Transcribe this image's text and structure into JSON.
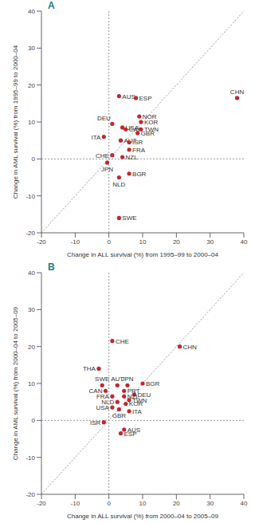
{
  "chart_data": [
    {
      "type": "scatter",
      "title": "A",
      "x_label": "Change in ALL survival (%) from 1995–99 to 2000–04",
      "y_label": "Change in AML survival (%) from 1995–99 to 2000–04",
      "xlim": [
        -20,
        40
      ],
      "ylim": [
        -20,
        40
      ],
      "xticks": [
        -20,
        -10,
        0,
        10,
        20,
        30,
        40
      ],
      "yticks": [
        -20,
        -10,
        0,
        10,
        20,
        30,
        40
      ],
      "color": "#c0282f",
      "grid": false,
      "labels": [
        "AUS",
        "ESP",
        "CHN",
        "NOR",
        "KOR",
        "DEU",
        "USA",
        "CAN",
        "TWN",
        "GBR",
        "ITA",
        "AUT",
        "ISR",
        "FRA",
        "CHE",
        "NZL",
        "JPN",
        "BGR",
        "NLD",
        "SWE"
      ],
      "x": [
        3,
        8,
        38,
        9,
        9.5,
        1,
        4,
        5,
        9.5,
        8.5,
        -1.5,
        3.5,
        6,
        6,
        1,
        4,
        -0.5,
        6,
        3,
        3
      ],
      "values": [
        17,
        16.5,
        16.5,
        11.5,
        10,
        9.5,
        8.5,
        8,
        8,
        7,
        6,
        5,
        4.5,
        2.5,
        1,
        0.5,
        -1,
        -4,
        -5,
        -16
      ],
      "reference_lines": [
        {
          "x": 0
        },
        {
          "y": 0
        },
        {
          "segment": [
            [
              -20,
              -20
            ],
            [
              40,
              40
            ]
          ]
        }
      ]
    },
    {
      "type": "scatter",
      "title": "B",
      "x_label": "Change in ALL survival (%) from 2000–04 to 2005–09",
      "y_label": "Change in AML survival (%) from 2000–04 to 2005–09",
      "xlim": [
        -20,
        40
      ],
      "ylim": [
        -20,
        40
      ],
      "xticks": [
        -20,
        -10,
        0,
        10,
        20,
        30,
        40
      ],
      "yticks": [
        -20,
        -10,
        0,
        10,
        20,
        30,
        40
      ],
      "color": "#c0282f",
      "grid": false,
      "labels": [
        "CHE",
        "CHN",
        "THA",
        "SWE",
        "AUT",
        "JPN",
        "BGR",
        "CAN",
        "PRT",
        "DEU",
        "FRA",
        "NZL",
        "TWN",
        "NLD",
        "KOR",
        "USA",
        "GBR",
        "ITA",
        "ISR",
        "AUS",
        "ESP"
      ],
      "x": [
        1,
        21,
        -3,
        -2,
        2.5,
        5.5,
        10,
        -1,
        4.5,
        7.5,
        1,
        4.5,
        6,
        2.5,
        5,
        1,
        3,
        6,
        -1.5,
        4.5,
        3.5
      ],
      "values": [
        21.5,
        20,
        14,
        9.5,
        9.5,
        9.5,
        10,
        8,
        8,
        7,
        6.5,
        6.5,
        5.5,
        5,
        4.5,
        3.5,
        3,
        2.5,
        -0.5,
        -2.5,
        -3.5
      ],
      "reference_lines": [
        {
          "x": 0
        },
        {
          "y": 0
        },
        {
          "segment": [
            [
              -20,
              -20
            ],
            [
              40,
              40
            ]
          ]
        }
      ]
    }
  ]
}
